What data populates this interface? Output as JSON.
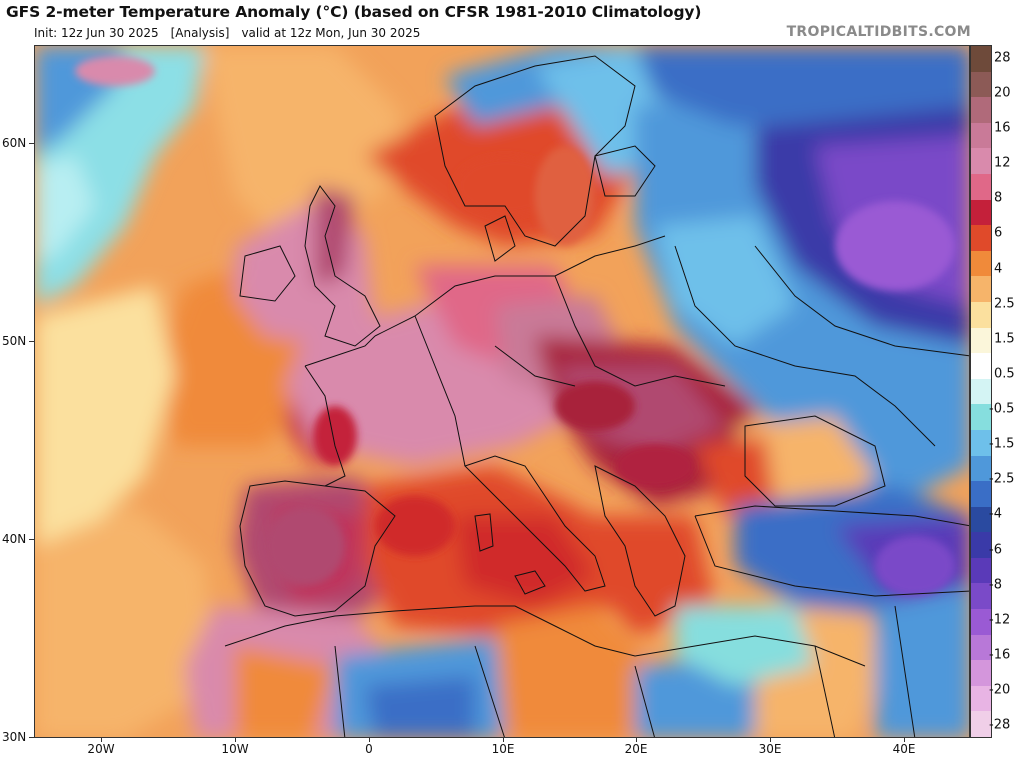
{
  "header": {
    "title": "GFS 2-meter Temperature Anomaly (°C) (based on CFSR 1981-2010 Climatology)",
    "init": "Init: 12z Jun 30 2025",
    "analysis": "[Analysis]",
    "valid": "valid at 12z Mon, Jun 30 2025",
    "credit": "TROPICALTIDBITS.COM"
  },
  "map": {
    "latitude_labels": [
      "60N",
      "50N",
      "40N",
      "30N"
    ],
    "longitude_labels": [
      "20W",
      "10W",
      "0",
      "10E",
      "20E",
      "30E",
      "40E"
    ]
  },
  "colorbar": {
    "labels": [
      "28",
      "20",
      "16",
      "12",
      "8",
      "6",
      "4",
      "2.5",
      "1.5",
      "0.5",
      "-0.5",
      "-1.5",
      "-2.5",
      "-4",
      "-6",
      "-8",
      "-12",
      "-16",
      "-20",
      "-28"
    ],
    "colors": [
      "#6e4a3a",
      "#8c5a56",
      "#b06a7a",
      "#c97a98",
      "#d98aac",
      "#e06888",
      "#c4203a",
      "#e04a2a",
      "#f08a3a",
      "#f6b46a",
      "#fbe09e",
      "#fbf6da",
      "#ffffff",
      "#d4f4f4",
      "#86dede",
      "#6ec0ea",
      "#4f98da",
      "#3a6ec6",
      "#2a4aa0",
      "#3a3aa8",
      "#5a3ab8",
      "#7a4ac8",
      "#9a5ad4",
      "#b878d8",
      "#d496dc",
      "#e8b4e4",
      "#f0cfe8"
    ]
  }
}
